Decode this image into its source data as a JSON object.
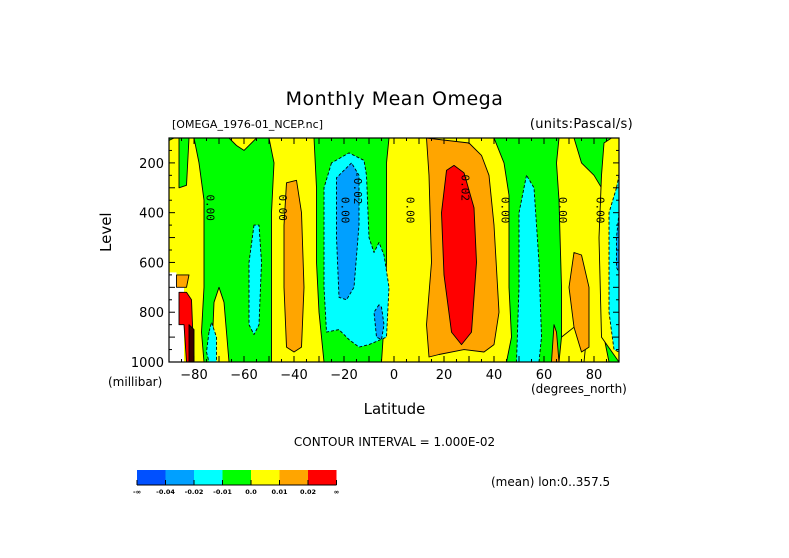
{
  "chart_data": {
    "type": "heatmap",
    "subtype": "filled-contour",
    "title": "Monthly Mean Omega",
    "subtitle_left": "[OMEGA_1976-01_NCEP.nc]",
    "subtitle_right": "(units:Pascal/s)",
    "xlabel": "Latitude",
    "xunits": "(degrees_north)",
    "ylabel": "Level",
    "yunits": "(millibar)",
    "xlim": [
      -90,
      90
    ],
    "ylim": [
      1000,
      100
    ],
    "x_ticks": [
      -80,
      -60,
      -40,
      -20,
      0,
      20,
      40,
      60,
      80
    ],
    "y_ticks": [
      200,
      400,
      600,
      800,
      1000
    ],
    "contour_interval_text": "CONTOUR INTERVAL = 1.000E-02",
    "footer_text": "(mean) lon:0..357.5",
    "contour_labels": [
      {
        "text": "0.00",
        "lat": -75,
        "level": 380
      },
      {
        "text": "0.00",
        "lat": -46,
        "level": 380
      },
      {
        "text": "0.00",
        "lat": -21,
        "level": 390
      },
      {
        "text": "-0.02",
        "lat": -16,
        "level": 300
      },
      {
        "text": "0.00",
        "lat": 5,
        "level": 390
      },
      {
        "text": "0.02",
        "lat": 27,
        "level": 300
      },
      {
        "text": "0.00",
        "lat": 43,
        "level": 390
      },
      {
        "text": "0.00",
        "lat": 66,
        "level": 390
      },
      {
        "text": "0.00",
        "lat": 81,
        "level": 390
      }
    ],
    "legend": {
      "colors": [
        "#0050ff",
        "#00a0ff",
        "#00ffff",
        "#00ff00",
        "#ffff00",
        "#ffa500",
        "#ff0000"
      ],
      "labels": [
        "-∞",
        "-0.04",
        "-0.02",
        "-0.01",
        "0.0",
        "0.01",
        "0.02",
        "∞"
      ]
    },
    "features": [
      {
        "desc": "strong ascent core (red)",
        "lat_range": [
          18,
          32
        ],
        "level_range": [
          250,
          930
        ],
        "value_min": 0.02
      },
      {
        "desc": "orange band around tropical ascent",
        "lat_range": [
          12,
          40
        ],
        "level_range": [
          150,
          960
        ],
        "value_range": [
          0.01,
          0.02
        ]
      },
      {
        "desc": "descent core (light blue)",
        "lat_range": [
          -24,
          -9
        ],
        "level_range": [
          200,
          750
        ],
        "value_range": [
          -0.04,
          -0.02
        ]
      },
      {
        "desc": "orange southern midlatitude column",
        "lat_range": [
          -45,
          -35
        ],
        "level_range": [
          250,
          950
        ],
        "value_range": [
          0.01,
          0.02
        ]
      },
      {
        "desc": "cyan column near 55N",
        "lat_range": [
          51,
          60
        ],
        "level_range": [
          300,
          1000
        ],
        "value_range": [
          -0.02,
          -0.01
        ]
      },
      {
        "desc": "orange column near 72N",
        "lat_range": [
          66,
          77
        ],
        "level_range": [
          560,
          1000
        ],
        "value_range": [
          0.01,
          0.02
        ]
      },
      {
        "desc": "polar surface extreme near 82S",
        "lat_range": [
          -88,
          -80
        ],
        "level_range": [
          650,
          1000
        ],
        "value_min": 0.02
      }
    ]
  }
}
